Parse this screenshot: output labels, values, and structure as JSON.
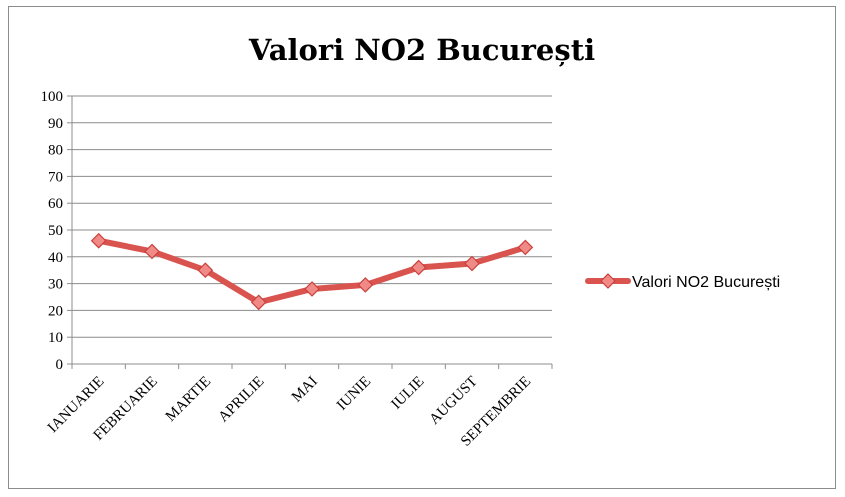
{
  "chart_data": {
    "type": "line",
    "title": "Valori NO2 București",
    "categories": [
      "IANUARIE",
      "FEBRUARIE",
      "MARTIE",
      "APRILIE",
      "MAI",
      "IUNIE",
      "IULIE",
      "AUGUST",
      "SEPTEMBRIE"
    ],
    "series": [
      {
        "name": "Valori NO2 București",
        "values": [
          46,
          42,
          35,
          23,
          28,
          29.5,
          36,
          37.5,
          43.5
        ],
        "color": "#d9534f"
      }
    ],
    "ylim": [
      0,
      100
    ],
    "yticks": [
      "0",
      "10",
      "20",
      "30",
      "40",
      "50",
      "60",
      "70",
      "80",
      "90",
      "100"
    ],
    "grid": true,
    "legend": "right",
    "marker": "diamond"
  }
}
